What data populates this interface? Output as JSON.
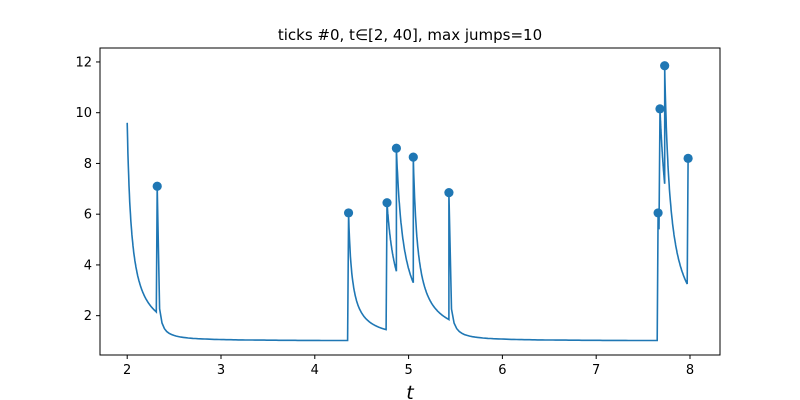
{
  "chart_data": {
    "type": "line",
    "title": "ticks #0, t∈[2, 40], max jumps=10",
    "xlabel": "t",
    "ylabel": "",
    "xlim": [
      1.71,
      8.32
    ],
    "ylim": [
      0.45,
      12.55
    ],
    "xticks": [
      2,
      3,
      4,
      5,
      6,
      7,
      8
    ],
    "yticks": [
      2,
      4,
      6,
      8,
      10,
      12
    ],
    "grid": false,
    "line_color": "#1f77b4",
    "series": [
      {
        "curve_start": [
          2.0,
          9.6
        ],
        "baseline": 1.0,
        "segments_end_values": [
          {
            "x_end": 2.31,
            "y_end": 2.15
          },
          {
            "x_end": 4.35,
            "y_end": 1.02
          },
          {
            "x_end": 4.76,
            "y_end": 1.45
          },
          {
            "x_end": 4.87,
            "y_end": 3.75
          },
          {
            "x_end": 5.05,
            "y_end": 3.3
          },
          {
            "x_end": 5.43,
            "y_end": 1.85
          },
          {
            "x_end": 7.65,
            "y_end": 1.02
          },
          {
            "x_end": 7.67,
            "y_end": 5.4
          },
          {
            "x_end": 7.73,
            "y_end": 7.2
          },
          {
            "x_end": 7.97,
            "y_end": 3.25
          }
        ]
      }
    ],
    "jumps": [
      {
        "x": 2.32,
        "y": 7.1
      },
      {
        "x": 4.36,
        "y": 6.05
      },
      {
        "x": 4.77,
        "y": 6.45
      },
      {
        "x": 4.87,
        "y": 8.6
      },
      {
        "x": 5.05,
        "y": 8.25
      },
      {
        "x": 5.43,
        "y": 6.85
      },
      {
        "x": 7.66,
        "y": 6.05
      },
      {
        "x": 7.68,
        "y": 10.15
      },
      {
        "x": 7.73,
        "y": 11.85
      },
      {
        "x": 7.98,
        "y": 8.2
      }
    ]
  }
}
